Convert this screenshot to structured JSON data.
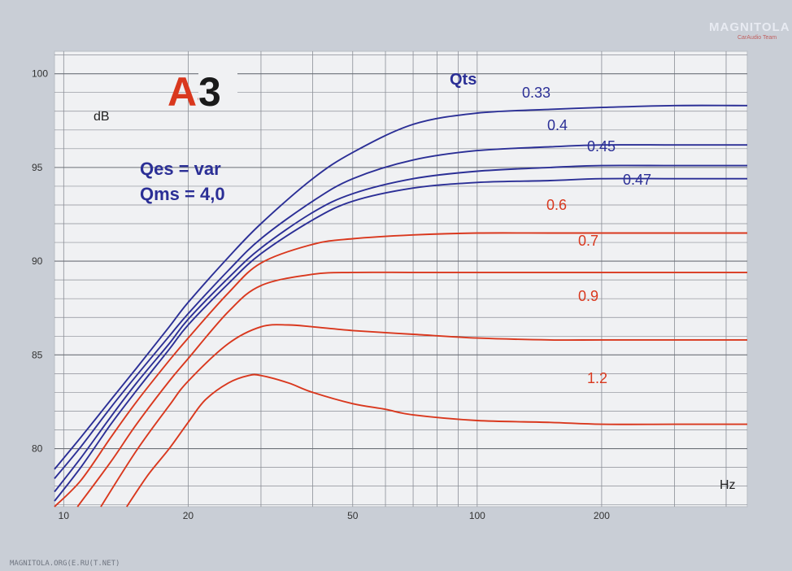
{
  "chart_data": {
    "type": "line",
    "title": "",
    "xlabel": "Hz",
    "ylabel": "dB",
    "x_scale": "log",
    "xlim": [
      9.5,
      450
    ],
    "ylim": [
      76.9,
      101.2
    ],
    "grid": true,
    "x_ticks": [
      10,
      20,
      50,
      100,
      200
    ],
    "x_tick_labels": [
      "10",
      "20",
      "50",
      "100",
      "200"
    ],
    "y_ticks": [
      80,
      85,
      90,
      95,
      100
    ],
    "y_tick_labels": [
      "80",
      "85",
      "90",
      "95",
      "100"
    ],
    "legend_title": "Qts",
    "parameters": [
      "Qes = var",
      "Qms = 4,0"
    ],
    "colors": {
      "high_qts": "#d9381e",
      "low_qts": "#2b2f96"
    },
    "series": [
      {
        "name": "0.33",
        "color": "#2b2f96",
        "x": [
          9.5,
          11,
          13,
          15,
          18,
          20,
          25,
          30,
          40,
          50,
          70,
          100,
          150,
          200,
          300,
          450
        ],
        "y": [
          78.9,
          80.6,
          82.6,
          84.3,
          86.5,
          87.8,
          90.2,
          92.0,
          94.4,
          95.8,
          97.3,
          97.9,
          98.1,
          98.2,
          98.3,
          98.3
        ]
      },
      {
        "name": "0.4",
        "color": "#2b2f96",
        "x": [
          9.5,
          11,
          13,
          15,
          18,
          20,
          25,
          30,
          40,
          50,
          70,
          100,
          150,
          200,
          300,
          450
        ],
        "y": [
          78.4,
          80.1,
          82.2,
          83.9,
          86.0,
          87.2,
          89.5,
          91.2,
          93.2,
          94.4,
          95.4,
          95.9,
          96.1,
          96.2,
          96.2,
          96.2
        ]
      },
      {
        "name": "0.45",
        "color": "#2b2f96",
        "x": [
          9.5,
          11,
          13,
          15,
          18,
          20,
          25,
          30,
          40,
          50,
          70,
          100,
          150,
          200,
          300,
          450
        ],
        "y": [
          77.7,
          79.5,
          81.7,
          83.5,
          85.6,
          86.9,
          89.1,
          90.7,
          92.6,
          93.6,
          94.4,
          94.8,
          95.0,
          95.1,
          95.1,
          95.1
        ]
      },
      {
        "name": "0.47",
        "color": "#2b2f96",
        "x": [
          9.5,
          11,
          13,
          15,
          18,
          20,
          25,
          30,
          40,
          50,
          70,
          100,
          150,
          200,
          300,
          450
        ],
        "y": [
          77.2,
          79.0,
          81.3,
          83.1,
          85.3,
          86.6,
          88.8,
          90.4,
          92.2,
          93.2,
          93.9,
          94.2,
          94.3,
          94.4,
          94.4,
          94.4
        ]
      },
      {
        "name": "0.6",
        "color": "#d9381e",
        "x": [
          9.5,
          11,
          13,
          15,
          18,
          20,
          25,
          30,
          40,
          50,
          70,
          100,
          150,
          200,
          300,
          450
        ],
        "y": [
          76.9,
          78.3,
          80.6,
          82.5,
          84.7,
          85.9,
          88.3,
          89.9,
          90.9,
          91.2,
          91.4,
          91.5,
          91.5,
          91.5,
          91.5,
          91.5
        ]
      },
      {
        "name": "0.7",
        "color": "#d9381e",
        "x": [
          10.8,
          13,
          15,
          18,
          20,
          25,
          30,
          40,
          50,
          70,
          100,
          150,
          200,
          300,
          450
        ],
        "y": [
          76.9,
          79.3,
          81.3,
          83.6,
          84.8,
          87.3,
          88.7,
          89.3,
          89.4,
          89.4,
          89.4,
          89.4,
          89.4,
          89.4,
          89.4
        ]
      },
      {
        "name": "0.9",
        "color": "#d9381e",
        "x": [
          12.3,
          15,
          18,
          20,
          25,
          30,
          35,
          40,
          50,
          70,
          100,
          150,
          200,
          300,
          450
        ],
        "y": [
          76.9,
          79.9,
          82.3,
          83.6,
          85.6,
          86.5,
          86.6,
          86.5,
          86.3,
          86.1,
          85.9,
          85.8,
          85.8,
          85.8,
          85.8
        ]
      },
      {
        "name": "1.2",
        "color": "#d9381e",
        "x": [
          14.2,
          16,
          18,
          20,
          22,
          25,
          28,
          30,
          35,
          40,
          50,
          60,
          70,
          100,
          150,
          200,
          300,
          450
        ],
        "y": [
          76.9,
          78.6,
          80.0,
          81.4,
          82.6,
          83.5,
          83.9,
          83.9,
          83.5,
          83.0,
          82.4,
          82.1,
          81.8,
          81.5,
          81.4,
          81.3,
          81.3,
          81.3
        ]
      }
    ],
    "annotations": [
      "A3"
    ]
  },
  "watermark": {
    "brand": "MAGNITOLA",
    "team": "CarAudio Team",
    "footer": "MAGNITOLA.ORG(E.RU(T.NET)"
  }
}
